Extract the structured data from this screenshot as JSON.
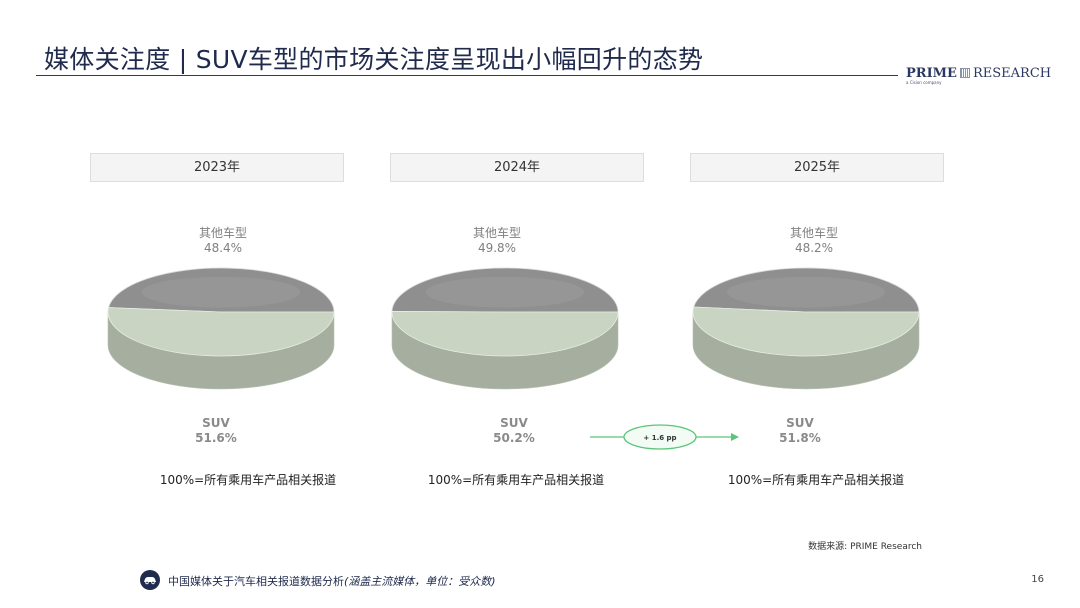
{
  "title": "媒体关注度 | SUV车型的市场关注度呈现出小幅回升的态势",
  "logo": {
    "main_bold": "PRIME",
    "main_rest": "RESEARCH",
    "sub": "a Cision company"
  },
  "chart_data": {
    "type": "pie",
    "charts": [
      {
        "year": "2023年",
        "slices": [
          {
            "name": "其他车型",
            "value": 48.4,
            "label": "48.4%",
            "color": "#8f8f8f"
          },
          {
            "name": "SUV",
            "value": 51.6,
            "label": "51.6%",
            "color": "#c9d4c2"
          }
        ],
        "base_note": "100%=所有乘用车产品相关报道"
      },
      {
        "year": "2024年",
        "slices": [
          {
            "name": "其他车型",
            "value": 49.8,
            "label": "49.8%",
            "color": "#8f8f8f"
          },
          {
            "name": "SUV",
            "value": 50.2,
            "label": "50.2%",
            "color": "#c9d4c2"
          }
        ],
        "base_note": "100%=所有乘用车产品相关报道"
      },
      {
        "year": "2025年",
        "slices": [
          {
            "name": "其他车型",
            "value": 48.2,
            "label": "48.2%",
            "color": "#8f8f8f"
          },
          {
            "name": "SUV",
            "value": 51.8,
            "label": "51.8%",
            "color": "#c9d4c2"
          }
        ],
        "base_note": "100%=所有乘用车产品相关报道"
      }
    ],
    "change_annotation": "+ 1.6 pp",
    "change_color": "#5cc47a"
  },
  "source": "数据来源: PRIME Research",
  "footer": {
    "text": "中国媒体关于汽车相关报道数据分析",
    "note": "(涵盖主流媒体，单位：受众数)"
  },
  "page_number": "16"
}
